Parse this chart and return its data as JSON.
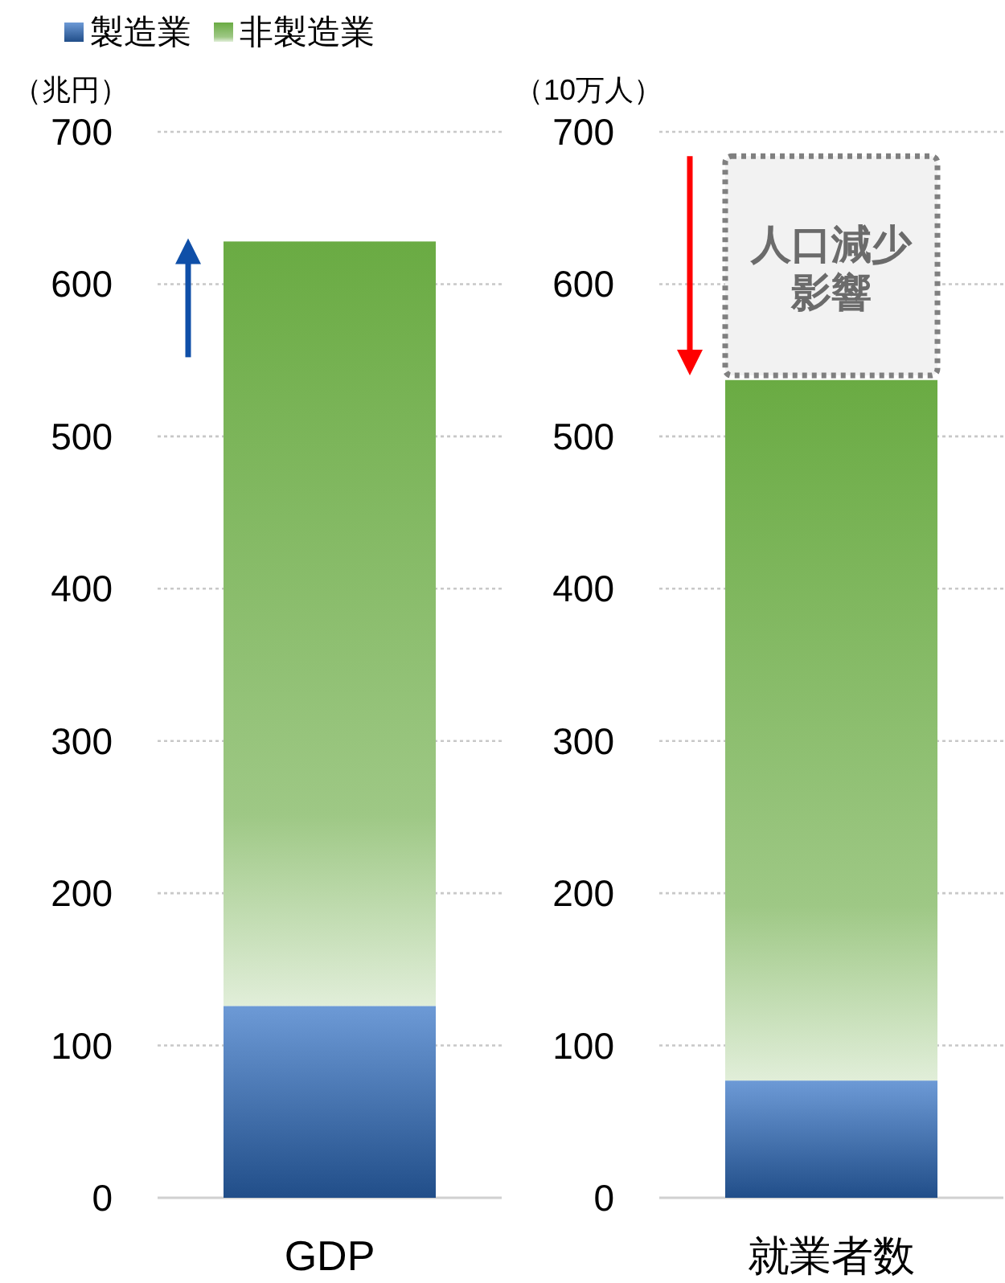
{
  "chart_data": [
    {
      "type": "bar",
      "stacked": true,
      "categories": [
        "GDP"
      ],
      "ylabel": "（兆円）",
      "ylim": [
        0,
        700
      ],
      "yticks": [
        0,
        100,
        200,
        300,
        400,
        500,
        600,
        700
      ],
      "grid": "y",
      "legend": "top left",
      "series": [
        {
          "name": "製造業",
          "color": "#2f6fc4",
          "values": [
            126
          ]
        },
        {
          "name": "非製造業",
          "color": "#6aab43",
          "values": [
            502
          ]
        }
      ]
    },
    {
      "type": "bar",
      "stacked": true,
      "categories": [
        "就業者数"
      ],
      "ylabel": "（10万人）",
      "ylim": [
        0,
        700
      ],
      "yticks": [
        0,
        100,
        200,
        300,
        400,
        500,
        600,
        700
      ],
      "grid": "y",
      "series": [
        {
          "color": "#2f6fc4",
          "values": [
            77
          ]
        },
        {
          "color": "#6aab43",
          "values": [
            460
          ]
        }
      ],
      "bands": [
        {
          "axis": "y",
          "from": 540,
          "to": 684,
          "label": "人口減少影響",
          "color": "#f2f2f2"
        }
      ]
    }
  ]
}
